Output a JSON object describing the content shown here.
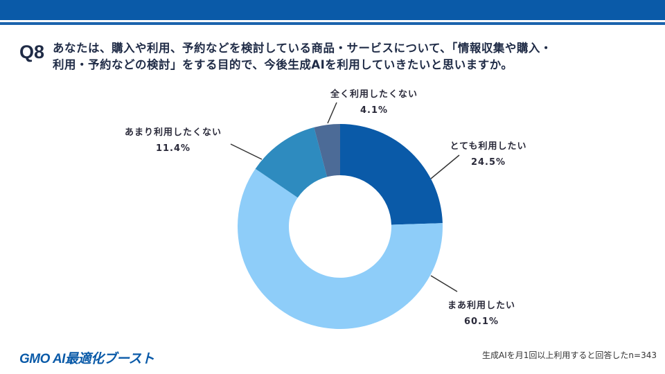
{
  "header": {
    "q_label": "Q8",
    "question_line1": "あなたは、購入や利用、予約などを検討している商品・サービスについて、「情報収集や購入・",
    "question_line2": "利用・予約などの検討」をする目的で、今後生成AIを利用していきたいと思いますか。"
  },
  "chart_data": {
    "type": "pie",
    "donut": true,
    "slices": [
      {
        "label": "とても利用したい",
        "value": 24.5,
        "value_label": "24.5%",
        "color": "#0a5aa8"
      },
      {
        "label": "まあ利用したい",
        "value": 60.1,
        "value_label": "60.1%",
        "color": "#8ecdf9"
      },
      {
        "label": "あまり利用したくない",
        "value": 11.4,
        "value_label": "11.4%",
        "color": "#2e8bbf"
      },
      {
        "label": "全く利用したくない",
        "value": 4.1,
        "value_label": "4.1%",
        "color": "#4c6b97"
      }
    ]
  },
  "footer": {
    "logo": "GMO AI最適化ブースト",
    "note": "生成AIを月1回以上利用すると回答したn=343"
  }
}
